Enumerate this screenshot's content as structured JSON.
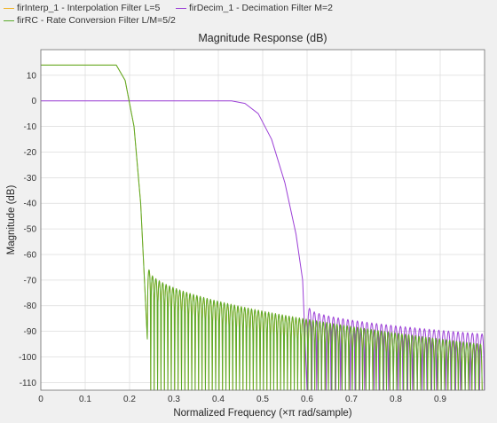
{
  "legend": [
    {
      "label": "firInterp_1 - Interpolation Filter L=5",
      "color": "#f0b429"
    },
    {
      "label": "firDecim_1 - Decimation Filter M=2",
      "color": "#9b3fd6"
    },
    {
      "label": "firRC - Rate Conversion Filter L/M=5/2",
      "color": "#5aaa2a"
    }
  ],
  "chart_data": {
    "type": "line",
    "title": "Magnitude Response (dB)",
    "xlabel": "Normalized Frequency (×π rad/sample)",
    "ylabel": "Magnitude (dB)",
    "xlim": [
      0,
      1
    ],
    "ylim": [
      -113,
      20
    ],
    "xticks": [
      "0",
      "0.1",
      "0.2",
      "0.3",
      "0.4",
      "0.5",
      "0.6",
      "0.7",
      "0.8",
      "0.9"
    ],
    "yticks": [
      "10",
      "0",
      "-10",
      "-20",
      "-30",
      "-40",
      "-50",
      "-60",
      "-70",
      "-80",
      "-90",
      "-100",
      "-110"
    ],
    "grid": true,
    "series": [
      {
        "name": "firInterp_1 - Interpolation Filter L=5",
        "color": "#f0b429",
        "passband": [
          [
            0,
            14
          ],
          [
            0.17,
            14
          ]
        ],
        "transition": [
          [
            0.17,
            14
          ],
          [
            0.19,
            8
          ],
          [
            0.21,
            -10
          ],
          [
            0.225,
            -40
          ],
          [
            0.24,
            -93
          ]
        ],
        "stopband": {
          "start": 0.24,
          "end": 1.0,
          "lobe": 0.0077,
          "peak_start": -66,
          "peak_end": -95
        }
      },
      {
        "name": "firDecim_1 - Decimation Filter M=2",
        "color": "#9b3fd6",
        "passband": [
          [
            0,
            0
          ],
          [
            0.43,
            0
          ]
        ],
        "transition": [
          [
            0.43,
            0
          ],
          [
            0.46,
            -1
          ],
          [
            0.49,
            -5
          ],
          [
            0.52,
            -15
          ],
          [
            0.55,
            -32
          ],
          [
            0.575,
            -52
          ],
          [
            0.59,
            -70
          ],
          [
            0.6,
            -113
          ]
        ],
        "stopband": {
          "start": 0.6,
          "end": 1.0,
          "lobe": 0.0108,
          "peak_start": -81,
          "peak_end": -91
        }
      },
      {
        "name": "firRC - Rate Conversion Filter L/M=5/2",
        "color": "#5aaa2a",
        "passband": [
          [
            0,
            14
          ],
          [
            0.17,
            14
          ]
        ],
        "transition": [
          [
            0.17,
            14
          ],
          [
            0.19,
            8
          ],
          [
            0.21,
            -10
          ],
          [
            0.225,
            -40
          ],
          [
            0.24,
            -93
          ]
        ],
        "stopband": {
          "start": 0.24,
          "end": 1.0,
          "lobe": 0.0077,
          "peak_start": -66,
          "peak_end": -95
        }
      }
    ]
  }
}
